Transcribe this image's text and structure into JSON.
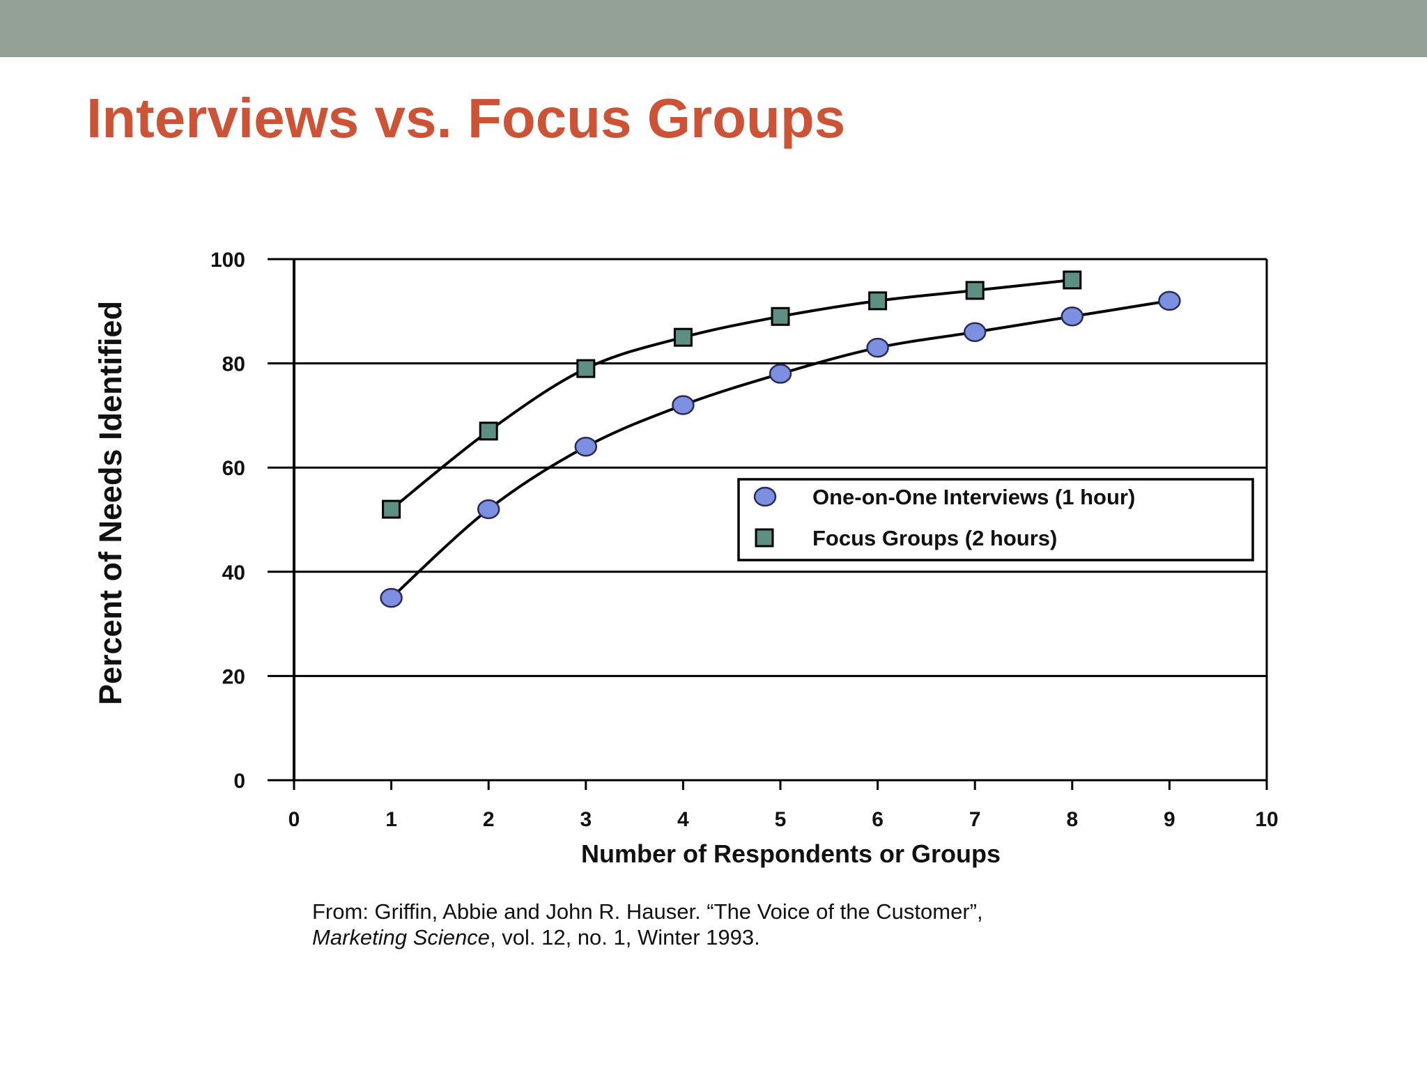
{
  "slide": {
    "title": "Interviews vs. Focus Groups"
  },
  "chart_data": {
    "type": "line",
    "xlabel": "Number of Respondents or Groups",
    "ylabel": "Percent of Needs Identified",
    "xlim": [
      0,
      10
    ],
    "ylim": [
      0,
      100
    ],
    "xticks": [
      "0",
      "1",
      "2",
      "3",
      "4",
      "5",
      "6",
      "7",
      "8",
      "9",
      "10"
    ],
    "yticks": [
      "0",
      "20",
      "40",
      "60",
      "80",
      "100"
    ],
    "grid": "horizontal",
    "legend_position": "center-right",
    "series": [
      {
        "name": "One-on-One Interviews (1 hour)",
        "marker": "circle",
        "color": "#7d8fe0",
        "x": [
          1,
          2,
          3,
          4,
          5,
          6,
          7,
          8,
          9
        ],
        "values": [
          35,
          52,
          64,
          72,
          78,
          83,
          86,
          89,
          92
        ]
      },
      {
        "name": "Focus Groups (2 hours)",
        "marker": "square",
        "color": "#5e8f85",
        "x": [
          1,
          2,
          3,
          4,
          5,
          6,
          7,
          8
        ],
        "values": [
          52,
          67,
          79,
          85,
          89,
          92,
          94,
          96
        ]
      }
    ]
  },
  "citation": {
    "line1": "From: Griffin, Abbie and John R. Hauser. “The Voice of the Customer”,",
    "journal": "Marketing Science",
    "line2_rest": ", vol. 12, no. 1, Winter 1993."
  }
}
